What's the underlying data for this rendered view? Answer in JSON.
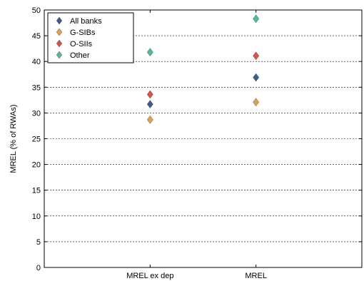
{
  "chart_data": {
    "type": "scatter",
    "categories": [
      "MREL ex dep",
      "MREL"
    ],
    "ylabel": "MREL (% of RWAs)",
    "xlabel": "",
    "ylim": [
      0,
      50
    ],
    "yticks": [
      0,
      5,
      10,
      15,
      20,
      25,
      30,
      35,
      40,
      45,
      50
    ],
    "grid": "horizontal dashed",
    "legend_position": "top-left",
    "series": [
      {
        "name": "All banks",
        "color": "#3a5f8a",
        "values": [
          31.7,
          36.9
        ]
      },
      {
        "name": "G-SIBs",
        "color": "#e3a04f",
        "values": [
          28.7,
          32.1
        ]
      },
      {
        "name": "O-SIIs",
        "color": "#d9534a",
        "values": [
          33.6,
          41.1
        ]
      },
      {
        "name": "Other",
        "color": "#4dbf92",
        "values": [
          41.8,
          48.3
        ]
      }
    ]
  }
}
